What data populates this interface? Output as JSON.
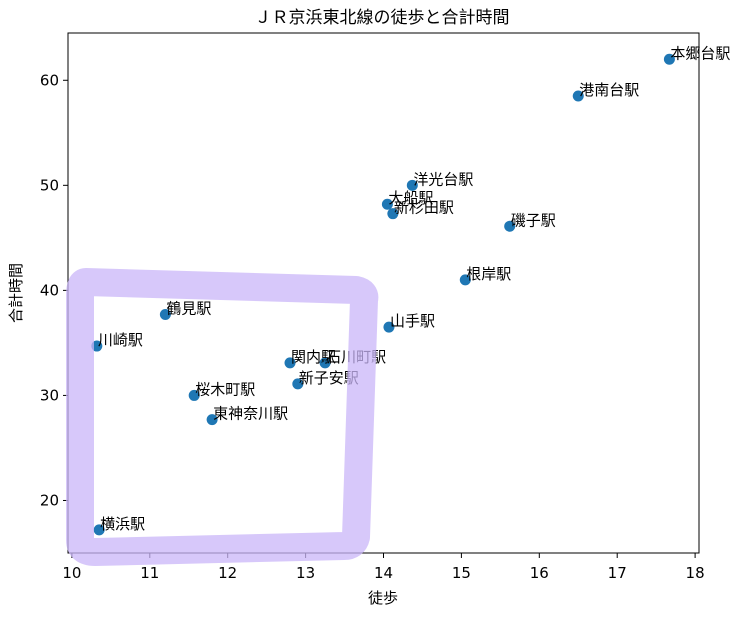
{
  "chart_data": {
    "type": "scatter",
    "title": "ＪＲ京浜東北線の徒歩と合計時間",
    "xlabel": "徒歩",
    "ylabel": "合計時間",
    "xlim": [
      9.95,
      18.05
    ],
    "ylim": [
      15,
      64.5
    ],
    "xticks": [
      10,
      11,
      12,
      13,
      14,
      15,
      16,
      17,
      18
    ],
    "yticks": [
      20,
      30,
      40,
      50,
      60
    ],
    "grid": false,
    "point_color": "#1f77b4",
    "annotation_color": "#c9b6f8",
    "points": [
      {
        "label": "本郷台駅",
        "x": 17.67,
        "y": 62.0
      },
      {
        "label": "港南台駅",
        "x": 16.5,
        "y": 58.5
      },
      {
        "label": "洋光台駅",
        "x": 14.37,
        "y": 50.0
      },
      {
        "label": "大船駅",
        "x": 14.05,
        "y": 48.2
      },
      {
        "label": "新杉田駅",
        "x": 14.12,
        "y": 47.3
      },
      {
        "label": "磯子駅",
        "x": 15.62,
        "y": 46.1
      },
      {
        "label": "根岸駅",
        "x": 15.05,
        "y": 41.0
      },
      {
        "label": "鶴見駅",
        "x": 11.2,
        "y": 37.7
      },
      {
        "label": "山手駅",
        "x": 14.07,
        "y": 36.5
      },
      {
        "label": "川崎駅",
        "x": 10.32,
        "y": 34.7
      },
      {
        "label": "関内駅",
        "x": 12.8,
        "y": 33.1
      },
      {
        "label": "石川町駅",
        "x": 13.25,
        "y": 33.1
      },
      {
        "label": "新子安駅",
        "x": 12.9,
        "y": 31.1
      },
      {
        "label": "桜木町駅",
        "x": 11.57,
        "y": 30.0
      },
      {
        "label": "東神奈川駅",
        "x": 11.8,
        "y": 27.7
      },
      {
        "label": "横浜駅",
        "x": 10.35,
        "y": 17.2
      }
    ]
  }
}
